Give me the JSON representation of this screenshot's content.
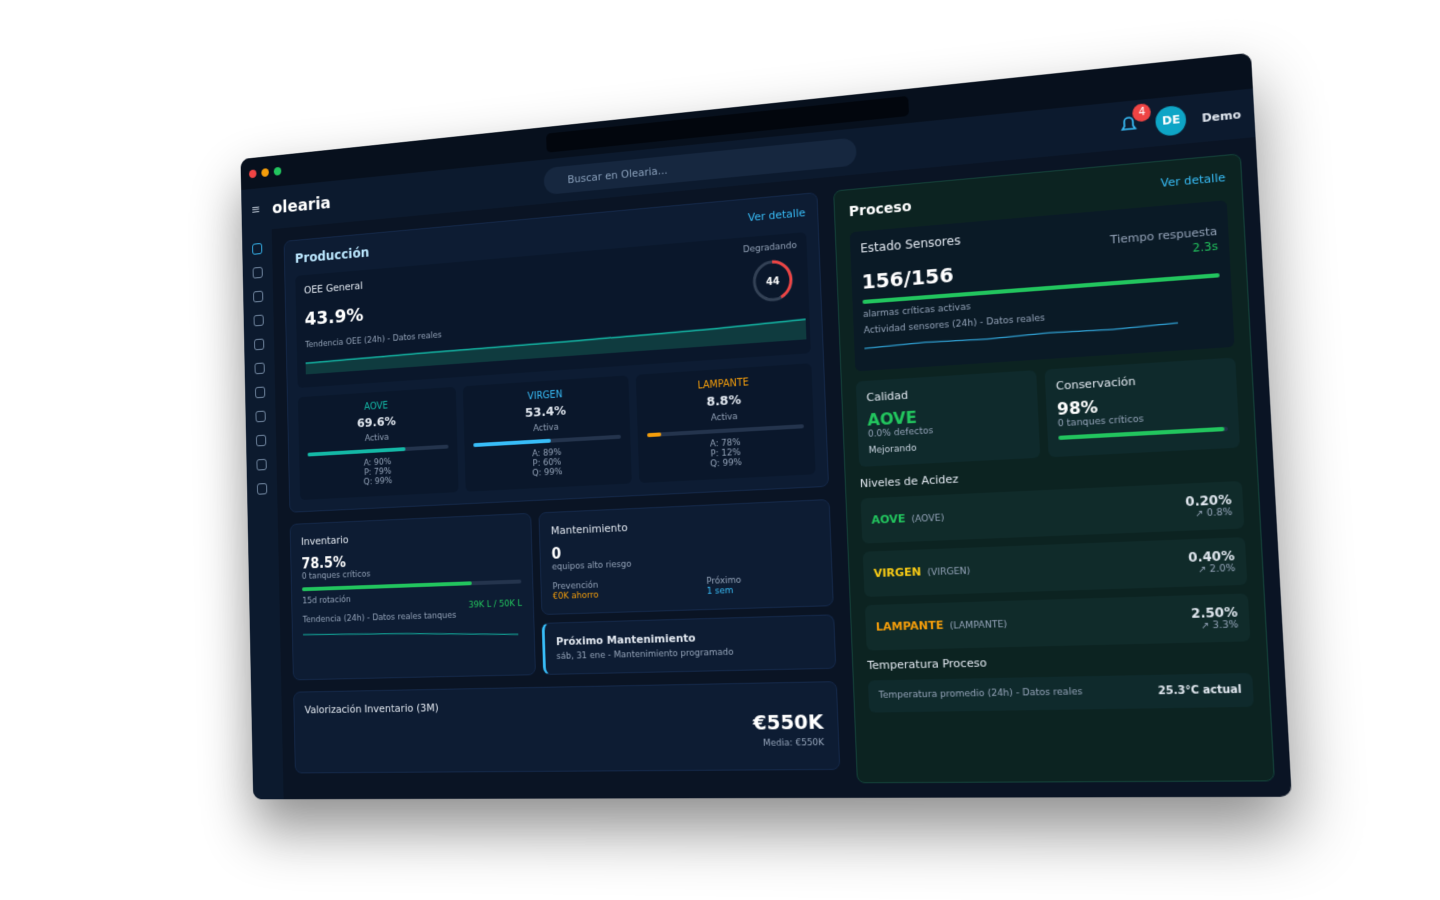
{
  "browser": {
    "search_placeholder": "Buscar en Olearia..."
  },
  "header": {
    "logo": "olearia",
    "notifications": "4",
    "avatar": "DE",
    "user": "Demo"
  },
  "produccion": {
    "title": "Producción",
    "link": "Ver detalle",
    "oee": {
      "label": "OEE General",
      "value": "43.9%",
      "status": "Degradando",
      "gauge": "44",
      "trend": "Tendencia OEE (24h) - Datos reales"
    },
    "grades": [
      {
        "name": "AOVE",
        "value": "69.6%",
        "state": "Activa",
        "a": "A: 90%",
        "p": "P: 79%",
        "q": "Q: 99%"
      },
      {
        "name": "VIRGEN",
        "value": "53.4%",
        "state": "Activa",
        "a": "A: 89%",
        "p": "P: 60%",
        "q": "Q: 99%"
      },
      {
        "name": "LAMPANTE",
        "value": "8.8%",
        "state": "Activa",
        "a": "A: 78%",
        "p": "P: 12%",
        "q": "Q: 99%"
      }
    ]
  },
  "inventario": {
    "title": "Inventario",
    "value": "78.5%",
    "sub": "0 tanques críticos",
    "rotation": "15d rotación",
    "capacity": "39K L / 50K L",
    "trend": "Tendencia (24h) - Datos reales tanques"
  },
  "mantenimiento": {
    "title": "Mantenimiento",
    "value": "0",
    "sub": "equipos alto riesgo",
    "prev_label": "Prevención",
    "prev": "€0K ahorro",
    "next_label": "Próximo",
    "next": "1 sem"
  },
  "proximo": {
    "title": "Próximo Mantenimiento",
    "detail": "sáb, 31 ene - Mantenimiento programado"
  },
  "valorizacion": {
    "title": "Valorización Inventario (3M)",
    "value": "€550K",
    "media": "Media: €550K"
  },
  "proceso": {
    "title": "Proceso",
    "link": "Ver detalle",
    "sensores": {
      "title": "Estado Sensores",
      "value": "156/156",
      "resp_label": "Tiempo respuesta",
      "resp": "2.3s",
      "alarms": "alarmas críticas activas",
      "trend": "Actividad sensores (24h) - Datos reales"
    },
    "calidad": {
      "title": "Calidad",
      "value": "AOVE",
      "sub": "0.0% defectos",
      "status": "Mejorando"
    },
    "conservacion": {
      "title": "Conservación",
      "value": "98%",
      "sub": "0 tanques críticos"
    },
    "acidez": {
      "title": "Niveles de Acidez",
      "rows": [
        {
          "name": "AOVE",
          "code": "(AOVE)",
          "value": "0.20%",
          "limit": "↗ 0.8%"
        },
        {
          "name": "VIRGEN",
          "code": "(VIRGEN)",
          "value": "0.40%",
          "limit": "↗ 2.0%"
        },
        {
          "name": "LAMPANTE",
          "code": "(LAMPANTE)",
          "value": "2.50%",
          "limit": "↗ 3.3%"
        }
      ]
    },
    "temperatura": {
      "title": "Temperatura Proceso",
      "trend": "Temperatura promedio (24h) - Datos reales",
      "value": "25.3°C actual"
    }
  }
}
